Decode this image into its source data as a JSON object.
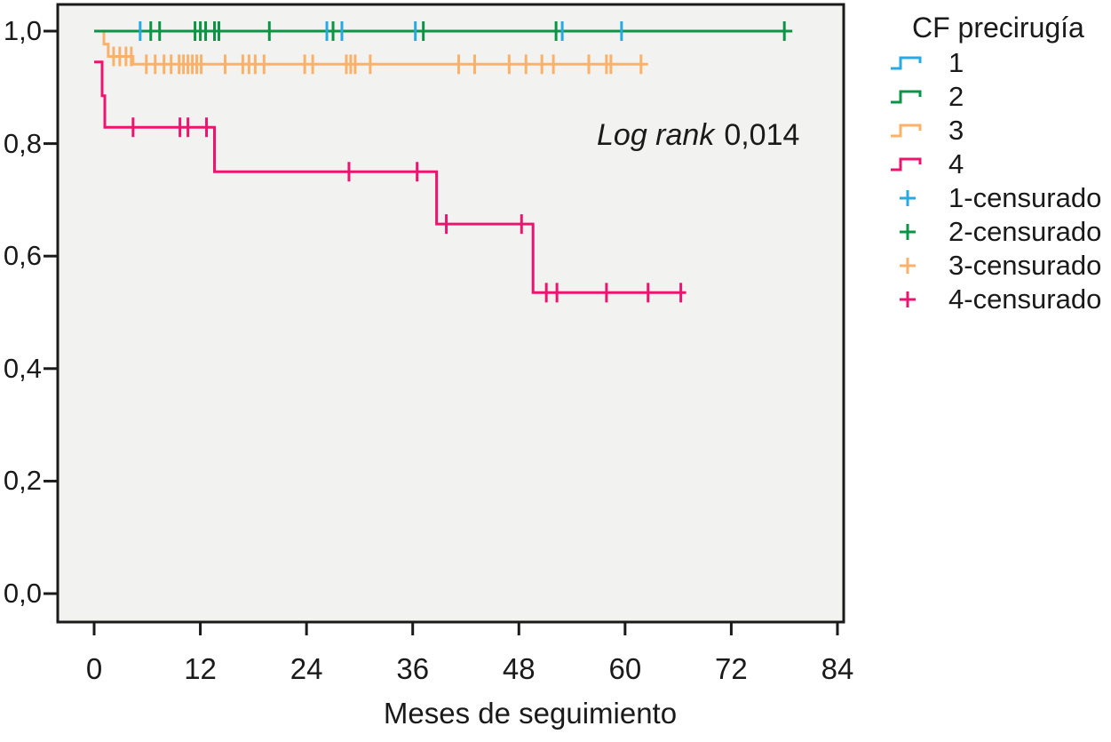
{
  "annotation": {
    "prefix_italic": "Log rank",
    "value": "0,014"
  },
  "legend": {
    "title": "CF precirugía",
    "line_items": [
      {
        "label": "1",
        "color": "#29A9E2"
      },
      {
        "label": "2",
        "color": "#0B9444"
      },
      {
        "label": "3",
        "color": "#FBB169"
      },
      {
        "label": "4",
        "color": "#EB146E"
      }
    ],
    "censored_items": [
      {
        "label": "1-censurado",
        "color": "#29A9E2"
      },
      {
        "label": "2-censurado",
        "color": "#0B9444"
      },
      {
        "label": "3-censurado",
        "color": "#FBB169"
      },
      {
        "label": "4-censurado",
        "color": "#EB146E"
      }
    ]
  },
  "chart_data": {
    "type": "line",
    "subtype": "kaplan_meier_step",
    "title": "",
    "xlabel": "Meses de seguimiento",
    "ylabel": "",
    "xlim": [
      -4,
      85
    ],
    "ylim": [
      -0.05,
      1.05
    ],
    "grid": false,
    "legend_position": "right",
    "annotation_text": "Log rank 0,014",
    "x_ticks": [
      0,
      12,
      24,
      36,
      48,
      60,
      72,
      84
    ],
    "y_ticks": [
      {
        "v": 1.0,
        "label": "1,0"
      },
      {
        "v": 0.8,
        "label": "0,8"
      },
      {
        "v": 0.6,
        "label": "0,6"
      },
      {
        "v": 0.4,
        "label": "0,4"
      },
      {
        "v": 0.2,
        "label": "0,2"
      },
      {
        "v": 0.0,
        "label": "0,0"
      }
    ],
    "series": [
      {
        "name": "1",
        "color": "#29A9E2",
        "steps": [
          [
            0,
            1.0
          ],
          [
            59.6,
            1.0
          ]
        ],
        "censored": [
          [
            5.2,
            1.0
          ],
          [
            26.3,
            1.0
          ],
          [
            28.0,
            1.0
          ],
          [
            36.3,
            1.0
          ],
          [
            52.9,
            1.0
          ],
          [
            59.6,
            1.0
          ]
        ]
      },
      {
        "name": "2",
        "color": "#0B9444",
        "steps": [
          [
            0,
            1.0
          ],
          [
            78.9,
            1.0
          ]
        ],
        "censored": [
          [
            6.4,
            1.0
          ],
          [
            7.4,
            1.0
          ],
          [
            11.4,
            1.0
          ],
          [
            12.0,
            1.0
          ],
          [
            12.6,
            1.0
          ],
          [
            13.6,
            1.0
          ],
          [
            14.1,
            1.0
          ],
          [
            19.8,
            1.0
          ],
          [
            27.0,
            1.0
          ],
          [
            37.2,
            1.0
          ],
          [
            52.2,
            1.0
          ],
          [
            78.0,
            1.0
          ]
        ]
      },
      {
        "name": "3",
        "color": "#FBB169",
        "steps": [
          [
            0,
            1.0
          ],
          [
            1.1,
            1.0
          ],
          [
            1.1,
            0.977
          ],
          [
            1.6,
            0.977
          ],
          [
            1.6,
            0.955
          ],
          [
            4.4,
            0.955
          ],
          [
            4.4,
            0.941
          ],
          [
            62.6,
            0.941
          ]
        ],
        "censored": [
          [
            2.2,
            0.955
          ],
          [
            2.9,
            0.955
          ],
          [
            3.6,
            0.955
          ],
          [
            4.2,
            0.955
          ],
          [
            5.9,
            0.941
          ],
          [
            6.9,
            0.941
          ],
          [
            7.9,
            0.941
          ],
          [
            8.7,
            0.941
          ],
          [
            9.6,
            0.941
          ],
          [
            10.1,
            0.941
          ],
          [
            10.6,
            0.941
          ],
          [
            11.1,
            0.941
          ],
          [
            11.6,
            0.941
          ],
          [
            12.1,
            0.941
          ],
          [
            14.8,
            0.941
          ],
          [
            16.8,
            0.941
          ],
          [
            17.5,
            0.941
          ],
          [
            18.2,
            0.941
          ],
          [
            19.2,
            0.941
          ],
          [
            23.8,
            0.941
          ],
          [
            24.7,
            0.941
          ],
          [
            28.5,
            0.941
          ],
          [
            29.0,
            0.941
          ],
          [
            29.5,
            0.941
          ],
          [
            31.2,
            0.941
          ],
          [
            41.2,
            0.941
          ],
          [
            43.0,
            0.941
          ],
          [
            46.9,
            0.941
          ],
          [
            48.8,
            0.941
          ],
          [
            50.6,
            0.941
          ],
          [
            51.9,
            0.941
          ],
          [
            55.9,
            0.941
          ],
          [
            57.9,
            0.941
          ],
          [
            58.4,
            0.941
          ],
          [
            61.8,
            0.941
          ]
        ]
      },
      {
        "name": "4",
        "color": "#EB146E",
        "steps": [
          [
            0,
            0.945
          ],
          [
            0.9,
            0.945
          ],
          [
            0.9,
            0.885
          ],
          [
            1.2,
            0.885
          ],
          [
            1.2,
            0.829
          ],
          [
            13.6,
            0.829
          ],
          [
            13.6,
            0.75
          ],
          [
            38.7,
            0.75
          ],
          [
            38.7,
            0.657
          ],
          [
            49.6,
            0.657
          ],
          [
            49.6,
            0.535
          ],
          [
            66.9,
            0.535
          ]
        ],
        "censored": [
          [
            4.4,
            0.829
          ],
          [
            9.7,
            0.829
          ],
          [
            10.6,
            0.829
          ],
          [
            12.7,
            0.829
          ],
          [
            28.8,
            0.75
          ],
          [
            36.5,
            0.75
          ],
          [
            39.8,
            0.657
          ],
          [
            48.3,
            0.657
          ],
          [
            51.1,
            0.535
          ],
          [
            52.3,
            0.535
          ],
          [
            57.9,
            0.535
          ],
          [
            62.6,
            0.535
          ],
          [
            66.3,
            0.535
          ]
        ]
      }
    ],
    "plot_background": "#f2f2f0",
    "border_color": "#1a1a1a"
  }
}
